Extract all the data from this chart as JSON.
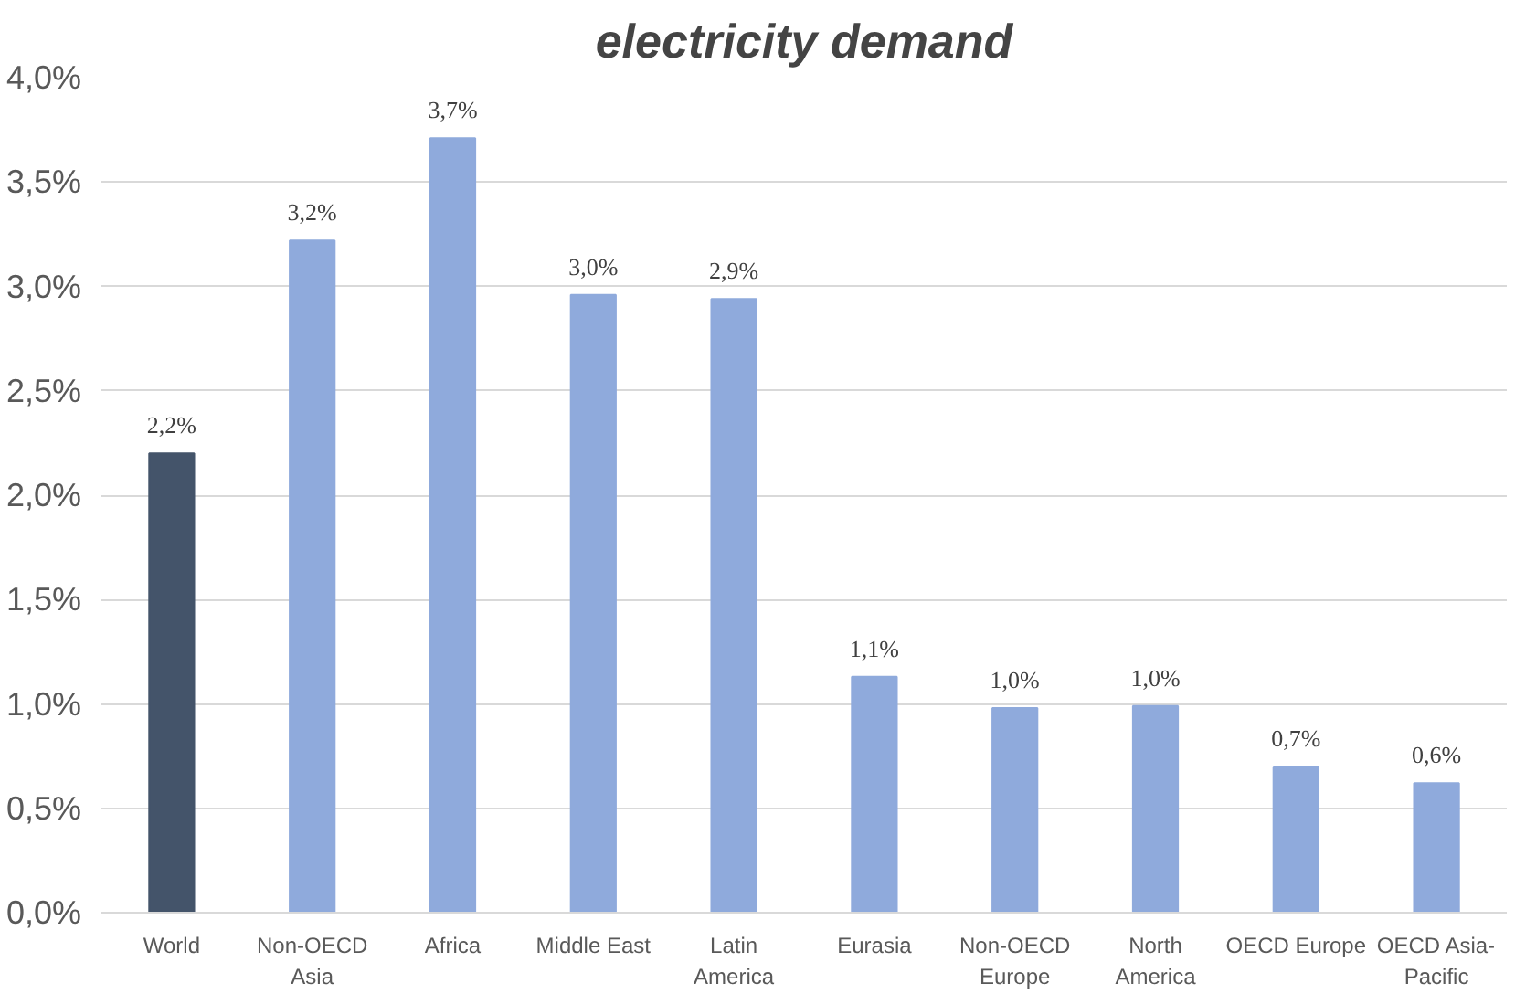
{
  "chart_data": {
    "type": "bar",
    "title": "electricity demand",
    "categories": [
      "World",
      "Non-OECD Asia",
      "Africa",
      "Middle East",
      "Latin America",
      "Eurasia",
      "Non-OECD Europe",
      "North America",
      "OECD Europe",
      "OECD Asia-Pacific"
    ],
    "values": [
      2.2,
      3.22,
      3.71,
      2.96,
      2.94,
      1.13,
      0.98,
      0.99,
      0.7,
      0.62
    ],
    "colors": [
      "#44546a",
      "#8faadc",
      "#8faadc",
      "#8faadc",
      "#8faadc",
      "#8faadc",
      "#8faadc",
      "#8faadc",
      "#8faadc",
      "#8faadc"
    ],
    "value_labels": [
      "2,2%",
      "3,2%",
      "3,7%",
      "3,0%",
      "2,9%",
      "1,1%",
      "1,0%",
      "1,0%",
      "0,7%",
      "0,6%"
    ],
    "ylim": [
      0,
      4
    ],
    "yticks": [
      {
        "value": 0,
        "label": "0,0%"
      },
      {
        "value": 0.5,
        "label": "0,5%"
      },
      {
        "value": 1,
        "label": "1,0%"
      },
      {
        "value": 1.5,
        "label": "1,5%"
      },
      {
        "value": 2,
        "label": "2,0%"
      },
      {
        "value": 2.5,
        "label": "2,5%"
      },
      {
        "value": 3,
        "label": "3,0%"
      },
      {
        "value": 3.5,
        "label": "3,5%"
      },
      {
        "value": 4,
        "label": "4,0%"
      }
    ],
    "grid": "y"
  }
}
